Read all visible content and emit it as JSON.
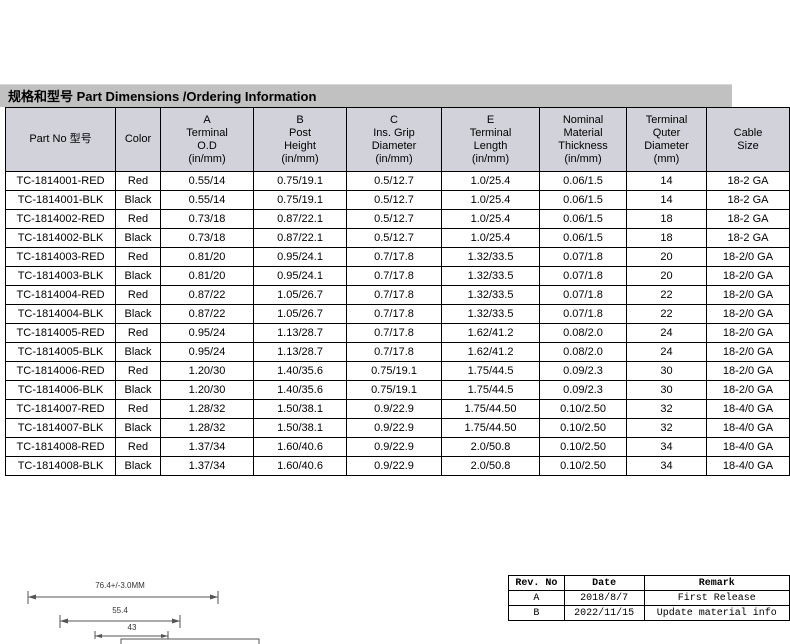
{
  "colors": {
    "title_bar_bg": "#c1c1c1",
    "table_header_bg": "#d2d2da",
    "border": "#000000"
  },
  "header": {
    "title": "规格和型号 Part Dimensions /Ordering Information"
  },
  "table": {
    "columns": [
      {
        "id": "part-no",
        "lines": [
          "Part No 型号"
        ]
      },
      {
        "id": "color",
        "lines": [
          "Color"
        ]
      },
      {
        "id": "terminal-od",
        "lines": [
          "A",
          "Terminal",
          "O.D",
          "(in/mm)"
        ]
      },
      {
        "id": "post-height",
        "lines": [
          "B",
          "Post",
          "Height",
          "(in/mm)"
        ]
      },
      {
        "id": "ins-grip-diameter",
        "lines": [
          "C",
          "Ins. Grip",
          "Diameter",
          "(in/mm)"
        ]
      },
      {
        "id": "terminal-length",
        "lines": [
          "E",
          "Terminal",
          "Length",
          "(in/mm)"
        ]
      },
      {
        "id": "material-thickness",
        "lines": [
          "Nominal",
          "Material",
          "Thickness",
          "(in/mm)"
        ]
      },
      {
        "id": "outer-diameter",
        "lines": [
          "Terminal",
          "Quter",
          "Diameter",
          "(mm)"
        ]
      },
      {
        "id": "cable-size",
        "lines": [
          "Cable",
          "Size"
        ]
      }
    ],
    "rows": [
      [
        "TC-1814001-RED",
        "Red",
        "0.55/14",
        "0.75/19.1",
        "0.5/12.7",
        "1.0/25.4",
        "0.06/1.5",
        "14",
        "18-2 GA"
      ],
      [
        "TC-1814001-BLK",
        "Black",
        "0.55/14",
        "0.75/19.1",
        "0.5/12.7",
        "1.0/25.4",
        "0.06/1.5",
        "14",
        "18-2 GA"
      ],
      [
        "TC-1814002-RED",
        "Red",
        "0.73/18",
        "0.87/22.1",
        "0.5/12.7",
        "1.0/25.4",
        "0.06/1.5",
        "18",
        "18-2 GA"
      ],
      [
        "TC-1814002-BLK",
        "Black",
        "0.73/18",
        "0.87/22.1",
        "0.5/12.7",
        "1.0/25.4",
        "0.06/1.5",
        "18",
        "18-2 GA"
      ],
      [
        "TC-1814003-RED",
        "Red",
        "0.81/20",
        "0.95/24.1",
        "0.7/17.8",
        "1.32/33.5",
        "0.07/1.8",
        "20",
        "18-2/0 GA"
      ],
      [
        "TC-1814003-BLK",
        "Black",
        "0.81/20",
        "0.95/24.1",
        "0.7/17.8",
        "1.32/33.5",
        "0.07/1.8",
        "20",
        "18-2/0 GA"
      ],
      [
        "TC-1814004-RED",
        "Red",
        "0.87/22",
        "1.05/26.7",
        "0.7/17.8",
        "1.32/33.5",
        "0.07/1.8",
        "22",
        "18-2/0 GA"
      ],
      [
        "TC-1814004-BLK",
        "Black",
        "0.87/22",
        "1.05/26.7",
        "0.7/17.8",
        "1.32/33.5",
        "0.07/1.8",
        "22",
        "18-2/0 GA"
      ],
      [
        "TC-1814005-RED",
        "Red",
        "0.95/24",
        "1.13/28.7",
        "0.7/17.8",
        "1.62/41.2",
        "0.08/2.0",
        "24",
        "18-2/0 GA"
      ],
      [
        "TC-1814005-BLK",
        "Black",
        "0.95/24",
        "1.13/28.7",
        "0.7/17.8",
        "1.62/41.2",
        "0.08/2.0",
        "24",
        "18-2/0 GA"
      ],
      [
        "TC-1814006-RED",
        "Red",
        "1.20/30",
        "1.40/35.6",
        "0.75/19.1",
        "1.75/44.5",
        "0.09/2.3",
        "30",
        "18-2/0 GA"
      ],
      [
        "TC-1814006-BLK",
        "Black",
        "1.20/30",
        "1.40/35.6",
        "0.75/19.1",
        "1.75/44.5",
        "0.09/2.3",
        "30",
        "18-2/0 GA"
      ],
      [
        "TC-1814007-RED",
        "Red",
        "1.28/32",
        "1.50/38.1",
        "0.9/22.9",
        "1.75/44.50",
        "0.10/2.50",
        "32",
        "18-4/0 GA"
      ],
      [
        "TC-1814007-BLK",
        "Black",
        "1.28/32",
        "1.50/38.1",
        "0.9/22.9",
        "1.75/44.50",
        "0.10/2.50",
        "32",
        "18-4/0 GA"
      ],
      [
        "TC-1814008-RED",
        "Red",
        "1.37/34",
        "1.60/40.6",
        "0.9/22.9",
        "2.0/50.8",
        "0.10/2.50",
        "34",
        "18-4/0 GA"
      ],
      [
        "TC-1814008-BLK",
        "Black",
        "1.37/34",
        "1.60/40.6",
        "0.9/22.9",
        "2.0/50.8",
        "0.10/2.50",
        "34",
        "18-4/0 GA"
      ]
    ]
  },
  "drawing": {
    "dim_overall": "76.4+/-3.0MM",
    "dim_mid": "55.4",
    "dim_inner": "43"
  },
  "revision_table": {
    "headers": [
      "Rev. No",
      "Date",
      "Remark"
    ],
    "rows": [
      [
        "A",
        "2018/8/7",
        "First Release"
      ],
      [
        "B",
        "2022/11/15",
        "Update material info"
      ]
    ]
  }
}
